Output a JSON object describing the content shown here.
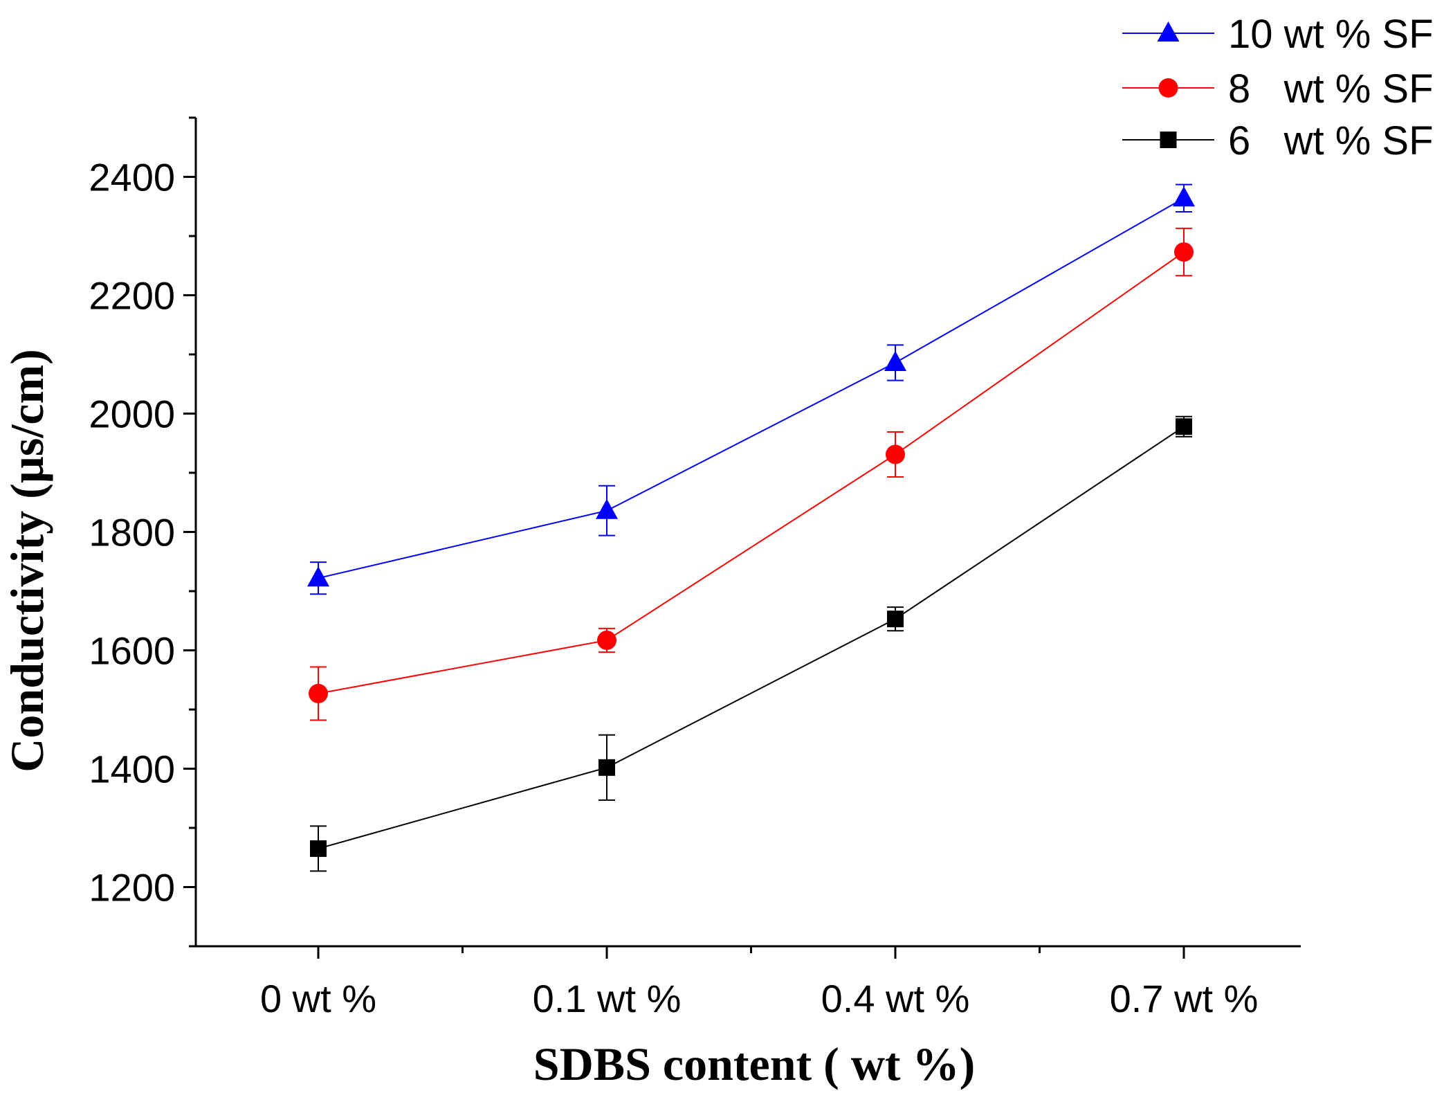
{
  "chart_data": {
    "type": "line",
    "title": "",
    "xlabel": "SDBS content ( wt %)",
    "ylabel": "Conductivity (µs/cm)",
    "categories": [
      "0 wt %",
      "0.1 wt %",
      "0.4 wt %",
      "0.7 wt %"
    ],
    "ylim": [
      1100,
      2500
    ],
    "yticks": [
      1200,
      1400,
      1600,
      1800,
      2000,
      2200,
      2400
    ],
    "legend_position": "top-right",
    "series": [
      {
        "name": "10 wt % SF",
        "color": "#0000ff",
        "marker": "triangle",
        "values": [
          1722,
          1836,
          2086,
          2364
        ],
        "errors": [
          27,
          42,
          30,
          23
        ]
      },
      {
        "name": "8   wt % SF",
        "color": "#ff0000",
        "marker": "circle",
        "values": [
          1527,
          1617,
          1931,
          2273
        ],
        "errors": [
          45,
          20,
          38,
          40
        ]
      },
      {
        "name": "6   wt % SF",
        "color": "#000000",
        "marker": "square",
        "values": [
          1265,
          1402,
          1653,
          1978
        ],
        "errors": [
          38,
          55,
          20,
          17
        ]
      }
    ]
  }
}
